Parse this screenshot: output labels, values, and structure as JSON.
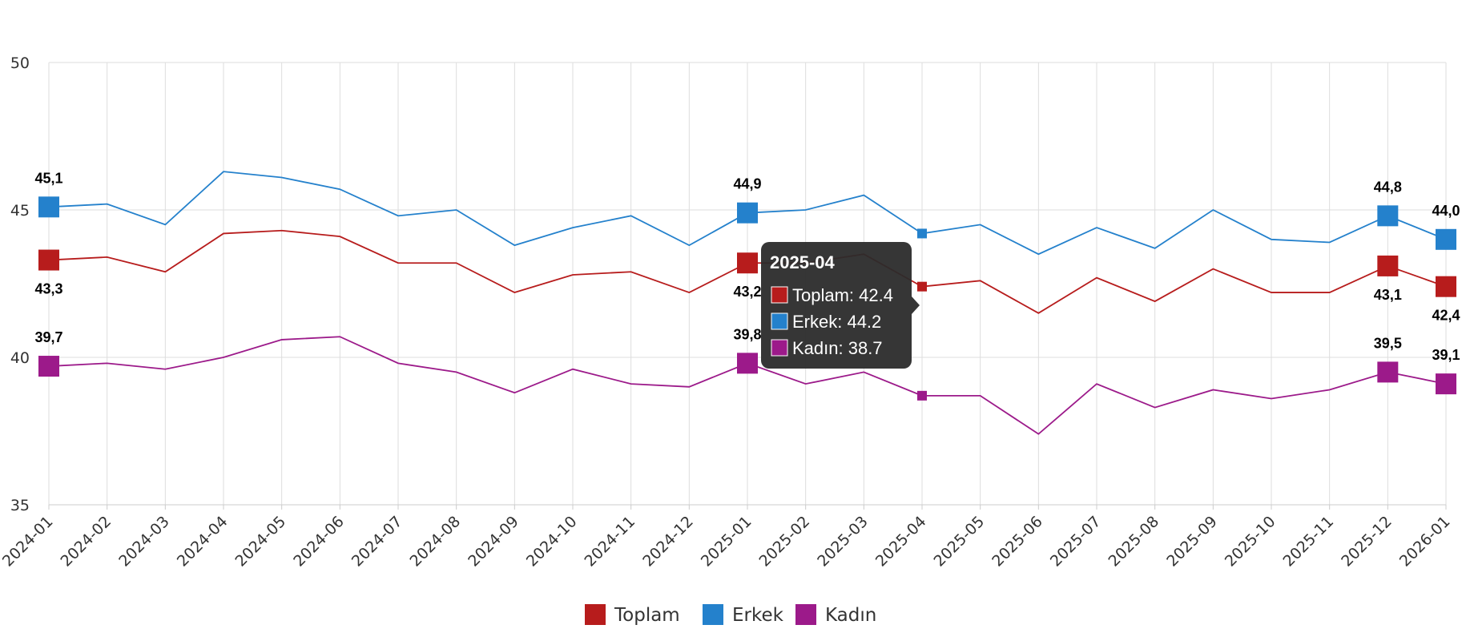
{
  "chart_data": {
    "type": "line",
    "title": "",
    "xlabel": "",
    "ylabel": "",
    "ylim": [
      35,
      50
    ],
    "yticks": [
      "35",
      "40",
      "45",
      "50"
    ],
    "grid": true,
    "legend_position": "bottom-center",
    "x": [
      "2024-01",
      "2024-02",
      "2024-03",
      "2024-04",
      "2024-05",
      "2024-06",
      "2024-07",
      "2024-08",
      "2024-09",
      "2024-10",
      "2024-11",
      "2024-12",
      "2025-01",
      "2025-02",
      "2025-03",
      "2025-04",
      "2025-05",
      "2025-06",
      "2025-07",
      "2025-08",
      "2025-09",
      "2025-10",
      "2025-11",
      "2025-12",
      "2026-01"
    ],
    "series": [
      {
        "name": "Toplam",
        "color": "#b71c1c",
        "values": [
          43.3,
          43.4,
          42.9,
          44.2,
          44.3,
          44.1,
          43.2,
          43.2,
          42.2,
          42.8,
          42.9,
          42.2,
          43.2,
          43.2,
          43.5,
          42.4,
          42.6,
          41.5,
          42.7,
          41.9,
          43.0,
          42.2,
          42.2,
          43.1,
          42.4
        ],
        "labels": [
          {
            "index": 0,
            "text": "43,3",
            "pos": "below"
          },
          {
            "index": 12,
            "text": "43,2",
            "pos": "below"
          },
          {
            "index": 23,
            "text": "43,1",
            "pos": "below"
          },
          {
            "index": 24,
            "text": "42,4",
            "pos": "below"
          }
        ]
      },
      {
        "name": "Erkek",
        "color": "#2481cc",
        "values": [
          45.1,
          45.2,
          44.5,
          46.3,
          46.1,
          45.7,
          44.8,
          45.0,
          43.8,
          44.4,
          44.8,
          43.8,
          44.9,
          45.0,
          45.5,
          44.2,
          44.5,
          43.5,
          44.4,
          43.7,
          45.0,
          44.0,
          43.9,
          44.8,
          44.0
        ],
        "labels": [
          {
            "index": 0,
            "text": "45,1",
            "pos": "above"
          },
          {
            "index": 12,
            "text": "44,9",
            "pos": "above"
          },
          {
            "index": 23,
            "text": "44,8",
            "pos": "above"
          },
          {
            "index": 24,
            "text": "44,0",
            "pos": "above"
          }
        ]
      },
      {
        "name": "Kadın",
        "color": "#9c1a8a",
        "values": [
          39.7,
          39.8,
          39.6,
          40.0,
          40.6,
          40.7,
          39.8,
          39.5,
          38.8,
          39.6,
          39.1,
          39.0,
          39.8,
          39.1,
          39.5,
          38.7,
          38.7,
          37.4,
          39.1,
          38.3,
          38.9,
          38.6,
          38.9,
          39.5,
          39.1
        ],
        "labels": [
          {
            "index": 0,
            "text": "39,7",
            "pos": "above"
          },
          {
            "index": 12,
            "text": "39,8",
            "pos": "above"
          },
          {
            "index": 23,
            "text": "39,5",
            "pos": "above"
          },
          {
            "index": 24,
            "text": "39,1",
            "pos": "above"
          }
        ]
      }
    ],
    "tooltip": {
      "index": 15,
      "title": "2025-04",
      "lines": [
        "Toplam: 42.4",
        "Erkek: 44.2",
        "Kadın: 38.7"
      ]
    }
  }
}
